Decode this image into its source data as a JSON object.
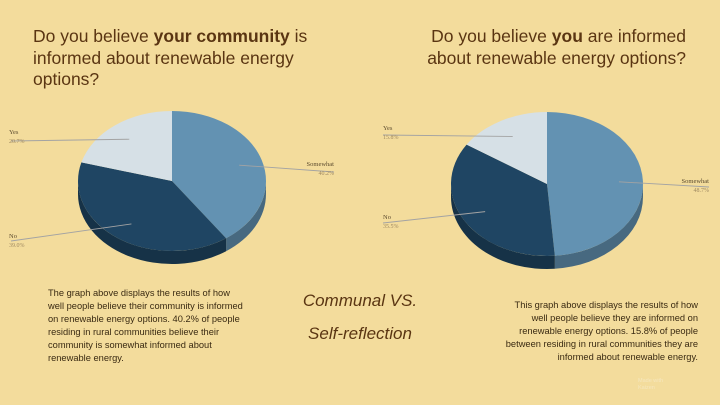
{
  "slide": {
    "q1_title": {
      "pre": "Do you believe ",
      "bold": "your community",
      "post": " is informed about renewable energy options?"
    },
    "q2_title": {
      "pre": "Do you believe ",
      "bold": "you",
      "post": " are informed about renewable energy options?"
    },
    "desc1": "The graph above displays the results of how well people believe  their community is informed on renewable energy options. 40.2% of people residing in rural communities believe their community is somewhat informed about renewable energy.",
    "desc2": "This graph above displays the results of how well people believe they are informed on renewable energy options. 15.8% of people between residing in rural communities they are informed about renewable energy.",
    "center_line1": "Communal VS.",
    "center_line2": "Self-reflection",
    "watermark_line1": "Made with",
    "watermark_line2": "Kaizen"
  },
  "colors": {
    "background": "#f3dc9c",
    "somewhat": "#6392b2",
    "no": "#1f4563",
    "yes": "#d6e0e6"
  },
  "chart_data": [
    {
      "type": "pie",
      "title": "Do you believe your community is informed about renewable energy options?",
      "slices": [
        {
          "label": "Somewhat",
          "value": 40.2,
          "value_label": "40.2%",
          "color": "#6392b2"
        },
        {
          "label": "No",
          "value": 39.0,
          "value_label": "39.0%",
          "color": "#1f4563"
        },
        {
          "label": "Yes",
          "value": 20.7,
          "value_label": "20.7%",
          "color": "#d6e0e6"
        }
      ],
      "legend": "callout labels"
    },
    {
      "type": "pie",
      "title": "Do you believe you are informed about renewable energy options?",
      "slices": [
        {
          "label": "Somewhat",
          "value": 48.7,
          "value_label": "48.7%",
          "color": "#6392b2"
        },
        {
          "label": "No",
          "value": 35.5,
          "value_label": "35.5%",
          "color": "#1f4563"
        },
        {
          "label": "Yes",
          "value": 15.8,
          "value_label": "15.8%",
          "color": "#d6e0e6"
        }
      ],
      "legend": "callout labels"
    }
  ]
}
